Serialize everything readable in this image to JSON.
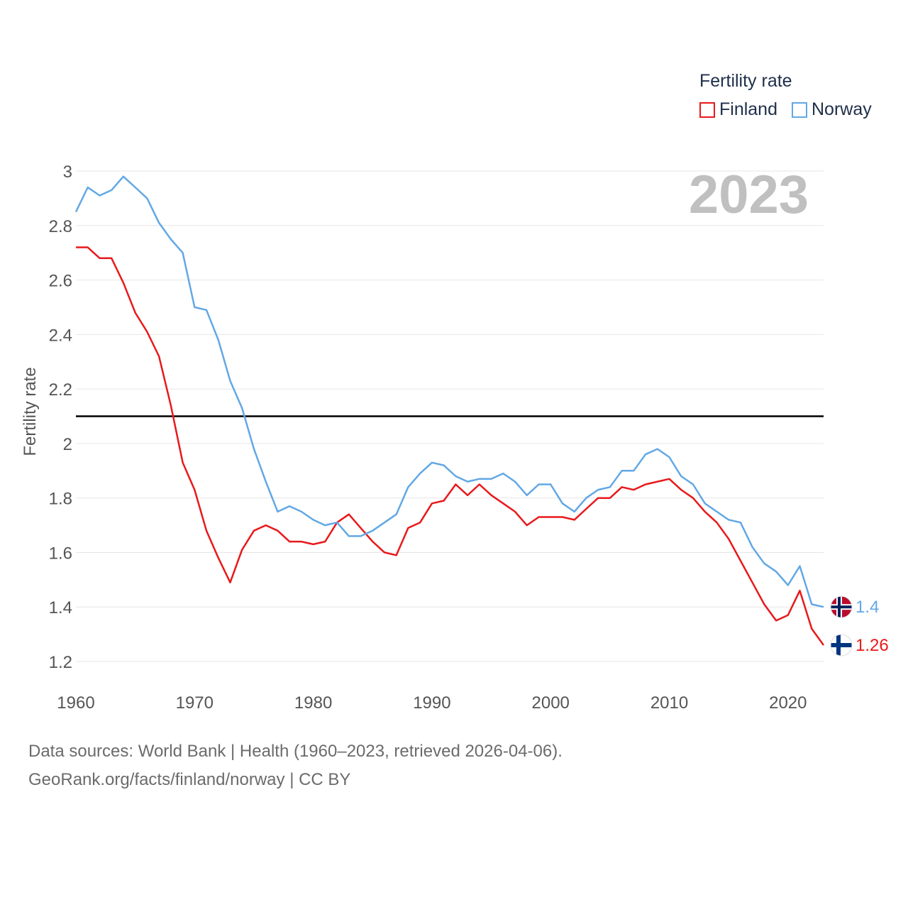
{
  "legend": {
    "title": "Fertility rate",
    "items": [
      {
        "label": "Finland",
        "color": "#e8191b"
      },
      {
        "label": "Norway",
        "color": "#62a8e5"
      }
    ]
  },
  "year_label": "2023",
  "footer": {
    "line1": "Data sources: World Bank | Health (1960–2023, retrieved 2026-04-06).",
    "line2": "GeoRank.org/facts/finland/norway | CC BY"
  },
  "chart_data": {
    "type": "line",
    "title": "",
    "xlabel": "",
    "ylabel": "Fertility rate",
    "xlim": [
      1960,
      2023
    ],
    "ylim": [
      1.2,
      3.0
    ],
    "x_ticks": [
      1960,
      1970,
      1980,
      1990,
      2000,
      2010,
      2020
    ],
    "y_ticks": [
      1.2,
      1.4,
      1.6,
      1.8,
      2,
      2.2,
      2.4,
      2.6,
      2.8,
      3
    ],
    "reference_line": 2.1,
    "x": [
      1960,
      1961,
      1962,
      1963,
      1964,
      1965,
      1966,
      1967,
      1968,
      1969,
      1970,
      1971,
      1972,
      1973,
      1974,
      1975,
      1976,
      1977,
      1978,
      1979,
      1980,
      1981,
      1982,
      1983,
      1984,
      1985,
      1986,
      1987,
      1988,
      1989,
      1990,
      1991,
      1992,
      1993,
      1994,
      1995,
      1996,
      1997,
      1998,
      1999,
      2000,
      2001,
      2002,
      2003,
      2004,
      2005,
      2006,
      2007,
      2008,
      2009,
      2010,
      2011,
      2012,
      2013,
      2014,
      2015,
      2016,
      2017,
      2018,
      2019,
      2020,
      2021,
      2022,
      2023
    ],
    "series": [
      {
        "name": "Finland",
        "color": "#e8191b",
        "end_label": "1.26",
        "values": [
          2.72,
          2.72,
          2.68,
          2.68,
          2.59,
          2.48,
          2.41,
          2.32,
          2.14,
          1.93,
          1.83,
          1.68,
          1.58,
          1.49,
          1.61,
          1.68,
          1.7,
          1.68,
          1.64,
          1.64,
          1.63,
          1.64,
          1.71,
          1.74,
          1.69,
          1.64,
          1.6,
          1.59,
          1.69,
          1.71,
          1.78,
          1.79,
          1.85,
          1.81,
          1.85,
          1.81,
          1.78,
          1.75,
          1.7,
          1.73,
          1.73,
          1.73,
          1.72,
          1.76,
          1.8,
          1.8,
          1.84,
          1.83,
          1.85,
          1.86,
          1.87,
          1.83,
          1.8,
          1.75,
          1.71,
          1.65,
          1.57,
          1.49,
          1.41,
          1.35,
          1.37,
          1.46,
          1.32,
          1.26
        ]
      },
      {
        "name": "Norway",
        "color": "#62a8e5",
        "end_label": "1.4",
        "values": [
          2.85,
          2.94,
          2.91,
          2.93,
          2.98,
          2.94,
          2.9,
          2.81,
          2.75,
          2.7,
          2.5,
          2.49,
          2.38,
          2.23,
          2.13,
          1.98,
          1.86,
          1.75,
          1.77,
          1.75,
          1.72,
          1.7,
          1.71,
          1.66,
          1.66,
          1.68,
          1.71,
          1.74,
          1.84,
          1.89,
          1.93,
          1.92,
          1.88,
          1.86,
          1.87,
          1.87,
          1.89,
          1.86,
          1.81,
          1.85,
          1.85,
          1.78,
          1.75,
          1.8,
          1.83,
          1.84,
          1.9,
          1.9,
          1.96,
          1.98,
          1.95,
          1.88,
          1.85,
          1.78,
          1.75,
          1.72,
          1.71,
          1.62,
          1.56,
          1.53,
          1.48,
          1.55,
          1.41,
          1.4
        ]
      }
    ]
  }
}
